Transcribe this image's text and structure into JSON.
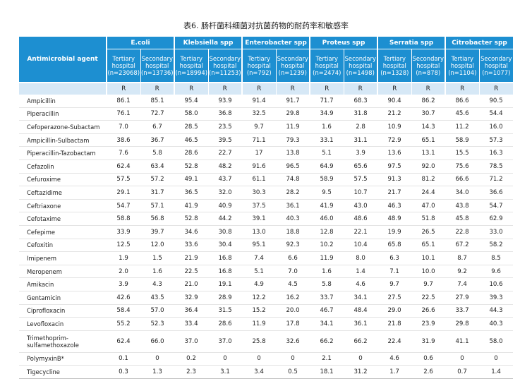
{
  "caption": "表6. 肠杆菌科细菌对抗菌药物的耐药率和敏感率",
  "agent_header": "Antimicrobial agent",
  "organisms": [
    {
      "name": "E.coli",
      "tertiary": [
        "Tertiary",
        "hospital",
        "(n=23068)"
      ],
      "secondary": [
        "Secondary",
        "hospital",
        "(n=13736)"
      ]
    },
    {
      "name": "Klebsiella spp",
      "tertiary": [
        "Tertiary",
        "hospital",
        "(n=18994)"
      ],
      "secondary": [
        "Secondary",
        "hospital",
        "(n=11253)"
      ]
    },
    {
      "name": "Enterobacter spp",
      "tertiary": [
        "Tertiary",
        "hospital",
        "(n=792)"
      ],
      "secondary": [
        "Secondary",
        "hospital",
        "(n=1239)"
      ]
    },
    {
      "name": "Proteus spp",
      "tertiary": [
        "Tertiary",
        "hospital",
        "(n=2474)"
      ],
      "secondary": [
        "Secondary",
        "hospital",
        "(n=1498)"
      ]
    },
    {
      "name": "Serratia spp",
      "tertiary": [
        "Tertiary",
        "hospital",
        "(n=1328)"
      ],
      "secondary": [
        "Secondary",
        "hospital",
        "(n=878)"
      ]
    },
    {
      "name": "Citrobacter spp",
      "tertiary": [
        "Tertiary",
        "hospital",
        "(n=1104)"
      ],
      "secondary": [
        "Secondary",
        "hospital",
        "(n=1077)"
      ]
    }
  ],
  "r_label": "R",
  "rows": [
    {
      "agent": "Ampicillin",
      "values": [
        "86.1",
        "85.1",
        "95.4",
        "93.9",
        "91.4",
        "91.7",
        "71.7",
        "68.3",
        "90.4",
        "86.2",
        "86.6",
        "90.5"
      ]
    },
    {
      "agent": "Piperacillin",
      "values": [
        "76.1",
        "72.7",
        "58.0",
        "36.8",
        "32.5",
        "29.8",
        "34.9",
        "31.8",
        "21.2",
        "30.7",
        "45.6",
        "54.4"
      ]
    },
    {
      "agent": "Cefoperazone-Subactam",
      "values": [
        "7.0",
        "6.7",
        "28.5",
        "23.5",
        "9.7",
        "11.9",
        "1.6",
        "2.8",
        "10.9",
        "14.3",
        "11.2",
        "16.0"
      ]
    },
    {
      "agent": "Ampicillin-Sulbactam",
      "values": [
        "38.6",
        "36.7",
        "46.5",
        "39.5",
        "71.1",
        "79.3",
        "33.1",
        "31.1",
        "72.9",
        "65.1",
        "58.9",
        "57.3"
      ]
    },
    {
      "agent": "Piperacillin-Tazobactam",
      "values": [
        "7.6",
        "5.8",
        "28.6",
        "22.7",
        "17",
        "13.8",
        "5.1",
        "3.9",
        "13.6",
        "13.1",
        "15.5",
        "16.3"
      ]
    },
    {
      "agent": "Cefazolin",
      "values": [
        "62.4",
        "63.4",
        "52.8",
        "48.2",
        "91.6",
        "96.5",
        "64.9",
        "65.6",
        "97.5",
        "92.0",
        "75.6",
        "78.5"
      ]
    },
    {
      "agent": "Cefuroxime",
      "values": [
        "57.5",
        "57.2",
        "49.1",
        "43.7",
        "61.1",
        "74.8",
        "58.9",
        "57.5",
        "91.3",
        "81.2",
        "66.6",
        "71.2"
      ]
    },
    {
      "agent": "Ceftazidime",
      "values": [
        "29.1",
        "31.7",
        "36.5",
        "32.0",
        "30.3",
        "28.2",
        "9.5",
        "10.7",
        "21.7",
        "24.4",
        "34.0",
        "36.6"
      ]
    },
    {
      "agent": "Ceftriaxone",
      "values": [
        "54.7",
        "57.1",
        "41.9",
        "40.9",
        "37.5",
        "36.1",
        "41.9",
        "43.0",
        "46.3",
        "47.0",
        "43.8",
        "54.7"
      ]
    },
    {
      "agent": "Cefotaxime",
      "values": [
        "58.8",
        "56.8",
        "52.8",
        "44.2",
        "39.1",
        "40.3",
        "46.0",
        "48.6",
        "48.9",
        "51.8",
        "45.8",
        "62.9"
      ]
    },
    {
      "agent": "Cefepime",
      "values": [
        "33.9",
        "39.7",
        "34.6",
        "30.8",
        "13.0",
        "18.8",
        "12.8",
        "22.1",
        "19.9",
        "26.5",
        "22.8",
        "33.0"
      ]
    },
    {
      "agent": "Cefoxitin",
      "values": [
        "12.5",
        "12.0",
        "33.6",
        "30.4",
        "95.1",
        "92.3",
        "10.2",
        "10.4",
        "65.8",
        "65.1",
        "67.2",
        "58.2"
      ]
    },
    {
      "agent": "Imipenem",
      "values": [
        "1.9",
        "1.5",
        "21.9",
        "16.8",
        "7.4",
        "6.6",
        "11.9",
        "8.0",
        "6.3",
        "10.1",
        "8.7",
        "8.5"
      ]
    },
    {
      "agent": "Meropenem",
      "values": [
        "2.0",
        "1.6",
        "22.5",
        "16.8",
        "5.1",
        "7.0",
        "1.6",
        "1.4",
        "7.1",
        "10.0",
        "9.2",
        "9.6"
      ]
    },
    {
      "agent": "Amikacin",
      "values": [
        "3.9",
        "4.3",
        "21.0",
        "19.1",
        "4.9",
        "4.5",
        "5.8",
        "4.6",
        "9.7",
        "9.7",
        "7.4",
        "10.6"
      ]
    },
    {
      "agent": "Gentamicin",
      "values": [
        "42.6",
        "43.5",
        "32.9",
        "28.9",
        "12.2",
        "16.2",
        "33.7",
        "34.1",
        "27.5",
        "22.5",
        "27.9",
        "39.3"
      ]
    },
    {
      "agent": "Ciprofloxacin",
      "values": [
        "58.4",
        "57.0",
        "36.4",
        "31.5",
        "15.2",
        "20.0",
        "46.7",
        "48.4",
        "29.0",
        "26.6",
        "33.7",
        "44.3"
      ]
    },
    {
      "agent": "Levofloxacin",
      "values": [
        "55.2",
        "52.3",
        "33.4",
        "28.6",
        "11.9",
        "17.8",
        "34.1",
        "36.1",
        "21.8",
        "23.9",
        "29.8",
        "40.3"
      ]
    },
    {
      "agent": "Trimethoprim-\nsulfamethoxazole",
      "tall": true,
      "values": [
        "62.4",
        "66.0",
        "37.0",
        "37.0",
        "25.8",
        "32.6",
        "66.2",
        "66.2",
        "22.4",
        "31.9",
        "41.1",
        "58.0"
      ]
    },
    {
      "agent": "PolymyxinB*",
      "values": [
        "0.1",
        "0",
        "0.2",
        "0",
        "0",
        "0",
        "2.1",
        "0",
        "4.6",
        "0.6",
        "0",
        "0"
      ]
    },
    {
      "agent": "Tigecycline",
      "values": [
        "0.3",
        "1.3",
        "2.3",
        "3.1",
        "3.4",
        "0.5",
        "18.1",
        "31.2",
        "1.7",
        "2.6",
        "0.7",
        "1.4"
      ]
    }
  ]
}
